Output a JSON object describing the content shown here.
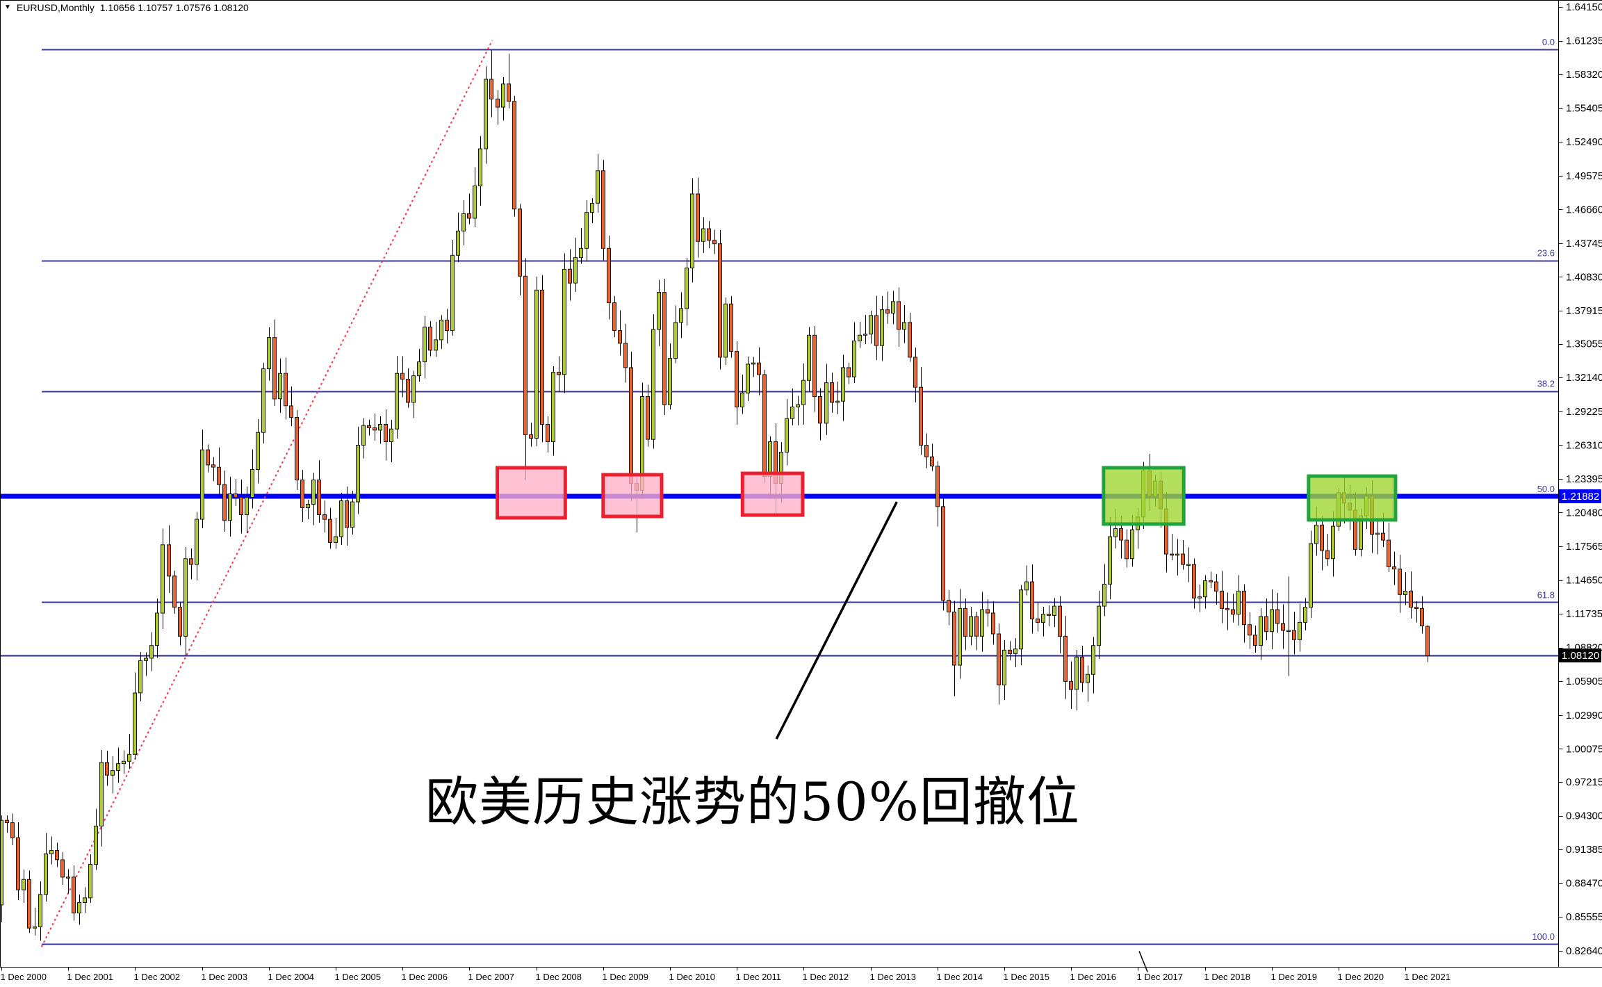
{
  "window": {
    "title": "EURUSD,Monthly  1.10656 1.10757 1.07576 1.08120",
    "symbol": "EURUSD",
    "timeframe": "Monthly"
  },
  "annotation": {
    "text": "欧美历史涨势的50%回撤位"
  },
  "colors": {
    "bull_body": "#aecb2f",
    "bear_body": "#e9632e",
    "candle_outline": "#151515",
    "wick": "#000000",
    "fib_line": "#3a35a0",
    "fib_label": "#3a35a0",
    "level_50_line": "#0000fe",
    "level_50_badge_bg": "#0000fe",
    "level_50_badge_text": "#ffffff",
    "current_price_line": "#22229a",
    "current_badge_bg": "#000000",
    "current_badge_text": "#ffffff",
    "trendline": "#f4364c",
    "pink_box_fill": "rgba(255,175,200,0.78)",
    "pink_box_border": "#ed1f2f",
    "green_box_fill": "rgba(160,214,50,0.80)",
    "green_box_border": "#22a43c",
    "callout_line": "#000000",
    "axis_text": "#000000",
    "axis_line": "#000000"
  },
  "chart_data": {
    "type": "candlestick",
    "title": "EURUSD Monthly",
    "current_ohlc": {
      "open": 1.10656,
      "high": 1.10757,
      "low": 1.07576,
      "close": 1.0812
    },
    "start_month": "2000-12",
    "first_open": 0.866,
    "monthly_closes": [
      0.939,
      0.937,
      0.924,
      0.879,
      0.888,
      0.846,
      0.847,
      0.875,
      0.91,
      0.913,
      0.905,
      0.89,
      0.89,
      0.859,
      0.868,
      0.872,
      0.901,
      0.934,
      0.989,
      0.978,
      0.982,
      0.988,
      0.99,
      0.996,
      1.049,
      1.077,
      1.079,
      1.09,
      1.118,
      1.177,
      1.15,
      1.123,
      1.098,
      1.165,
      1.16,
      1.199,
      1.259,
      1.246,
      1.244,
      1.229,
      1.198,
      1.221,
      1.218,
      1.203,
      1.218,
      1.242,
      1.274,
      1.329,
      1.356,
      1.303,
      1.325,
      1.297,
      1.287,
      1.233,
      1.209,
      1.212,
      1.233,
      1.203,
      1.199,
      1.179,
      1.184,
      1.215,
      1.192,
      1.214,
      1.263,
      1.28,
      1.278,
      1.276,
      1.281,
      1.266,
      1.277,
      1.325,
      1.32,
      1.3,
      1.323,
      1.335,
      1.365,
      1.345,
      1.354,
      1.371,
      1.362,
      1.427,
      1.448,
      1.463,
      1.459,
      1.487,
      1.519,
      1.579,
      1.562,
      1.555,
      1.575,
      1.56,
      1.467,
      1.409,
      1.272,
      1.269,
      1.397,
      1.281,
      1.266,
      1.326,
      1.324,
      1.415,
      1.403,
      1.425,
      1.433,
      1.464,
      1.472,
      1.5,
      1.433,
      1.386,
      1.362,
      1.351,
      1.33,
      1.23,
      1.224,
      1.305,
      1.268,
      1.363,
      1.395,
      1.298,
      1.338,
      1.369,
      1.381,
      1.416,
      1.48,
      1.439,
      1.45,
      1.44,
      1.437,
      1.339,
      1.385,
      1.344,
      1.296,
      1.308,
      1.333,
      1.334,
      1.324,
      1.236,
      1.266,
      1.23,
      1.257,
      1.286,
      1.296,
      1.298,
      1.319,
      1.358,
      1.305,
      1.282,
      1.317,
      1.3,
      1.301,
      1.33,
      1.322,
      1.353,
      1.358,
      1.359,
      1.375,
      1.349,
      1.38,
      1.377,
      1.387,
      1.363,
      1.369,
      1.339,
      1.313,
      1.263,
      1.253,
      1.245,
      1.21,
      1.129,
      1.119,
      1.073,
      1.122,
      1.098,
      1.115,
      1.098,
      1.121,
      1.118,
      1.1,
      1.056,
      1.086,
      1.083,
      1.087,
      1.138,
      1.145,
      1.113,
      1.11,
      1.117,
      1.116,
      1.124,
      1.098,
      1.059,
      1.052,
      1.08,
      1.058,
      1.065,
      1.09,
      1.124,
      1.143,
      1.184,
      1.191,
      1.181,
      1.165,
      1.19,
      1.201,
      1.241,
      1.219,
      1.232,
      1.208,
      1.169,
      1.168,
      1.169,
      1.16,
      1.16,
      1.131,
      1.132,
      1.146,
      1.145,
      1.137,
      1.122,
      1.121,
      1.117,
      1.137,
      1.108,
      1.099,
      1.09,
      1.115,
      1.102,
      1.121,
      1.109,
      1.103,
      1.103,
      1.095,
      1.11,
      1.123,
      1.178,
      1.194,
      1.172,
      1.165,
      1.193,
      1.222,
      1.213,
      1.207,
      1.173,
      1.202,
      1.219,
      1.186,
      1.187,
      1.181,
      1.158,
      1.156,
      1.134,
      1.137,
      1.123,
      1.122,
      1.107,
      1.0812
    ],
    "wick_overrides": {
      "7": {
        "low": 0.8349
      },
      "87": {
        "high": 1.5903
      },
      "88": {
        "high": 1.604
      },
      "91": {
        "high": 1.601
      },
      "94": {
        "low": 1.233
      },
      "107": {
        "high": 1.5144
      },
      "113": {
        "low": 1.2151
      },
      "114": {
        "low": 1.1876
      },
      "125": {
        "high": 1.494
      },
      "139": {
        "low": 1.2042
      },
      "161": {
        "high": 1.3993
      },
      "171": {
        "low": 1.0462
      },
      "192": {
        "low": 1.0352
      },
      "193": {
        "low": 1.034
      },
      "206": {
        "high": 1.2555
      },
      "231": {
        "low": 1.0636,
        "high": 1.1495
      },
      "241": {
        "high": 1.2349
      },
      "245": {
        "high": 1.2266
      },
      "256": {
        "open": 1.10656,
        "high": 1.10757,
        "low": 1.07576,
        "close": 1.0812
      }
    },
    "y_axis": {
      "max": 1.6415,
      "min": 0.8264,
      "labels": [
        "1.64150",
        "1.61235",
        "1.58320",
        "1.55405",
        "1.52490",
        "1.49575",
        "1.46660",
        "1.43745",
        "1.40830",
        "1.37915",
        "1.35055",
        "1.32140",
        "1.29225",
        "1.26310",
        "1.23395",
        "1.20480",
        "1.17565",
        "1.14650",
        "1.11735",
        "1.08820",
        "1.05905",
        "1.02990",
        "1.00075",
        "0.97215",
        "0.94300",
        "0.91385",
        "0.88470",
        "0.85555",
        "0.82640"
      ]
    },
    "x_axis": {
      "labels": [
        "1 Dec 2000",
        "1 Dec 2001",
        "1 Dec 2002",
        "1 Dec 2003",
        "1 Dec 2004",
        "1 Dec 2005",
        "1 Dec 2006",
        "1 Dec 2007",
        "1 Dec 2008",
        "1 Dec 2009",
        "1 Dec 2010",
        "1 Dec 2011",
        "1 Dec 2012",
        "1 Dec 2013",
        "1 Dec 2014",
        "1 Dec 2015",
        "1 Dec 2016",
        "1 Dec 2017",
        "1 Dec 2018",
        "1 Dec 2019",
        "1 Dec 2020",
        "1 Dec 2021"
      ]
    },
    "fib_levels": [
      {
        "label": "0.0",
        "price": 1.6049
      },
      {
        "label": "23.6",
        "price": 1.4226
      },
      {
        "label": "38.2",
        "price": 1.3098
      },
      {
        "label": "50.0",
        "price": 1.21882,
        "is_bold_blue": true
      },
      {
        "label": "61.8",
        "price": 1.1274
      },
      {
        "label": "100.0",
        "price": 0.8323
      }
    ],
    "price_lines": [
      {
        "price": 1.21882,
        "axis_label": "1.21882",
        "style": "bold-blue"
      },
      {
        "price": 1.0812,
        "axis_label": "1.08120",
        "style": "current"
      }
    ],
    "trendline": {
      "m1": 7.2,
      "p1": 0.8297,
      "m2": 88.1,
      "p2": 1.6127,
      "style": "red-dotted"
    },
    "boxes": [
      {
        "kind": "pink",
        "m1": 89.0,
        "m2": 101.2,
        "p_top": 1.2435,
        "p_bottom": 1.2003
      },
      {
        "kind": "pink",
        "m1": 108.0,
        "m2": 118.5,
        "p_top": 1.2375,
        "p_bottom": 1.2015
      },
      {
        "kind": "pink",
        "m1": 133.0,
        "m2": 143.8,
        "p_top": 1.2387,
        "p_bottom": 1.2027
      },
      {
        "kind": "green",
        "m1": 197.8,
        "m2": 212.2,
        "p_top": 1.2435,
        "p_bottom": 1.1949
      },
      {
        "kind": "green",
        "m1": 234.6,
        "m2": 250.2,
        "p_top": 1.2363,
        "p_bottom": 1.1985
      }
    ],
    "callout_line": {
      "m1": 160.7,
      "p1": 1.214,
      "m2": 139.1,
      "p2": 1.0093
    },
    "stray_mark": {
      "m1": 204.2,
      "p1": 0.826,
      "m2": 205.7,
      "p2": 0.808
    }
  }
}
